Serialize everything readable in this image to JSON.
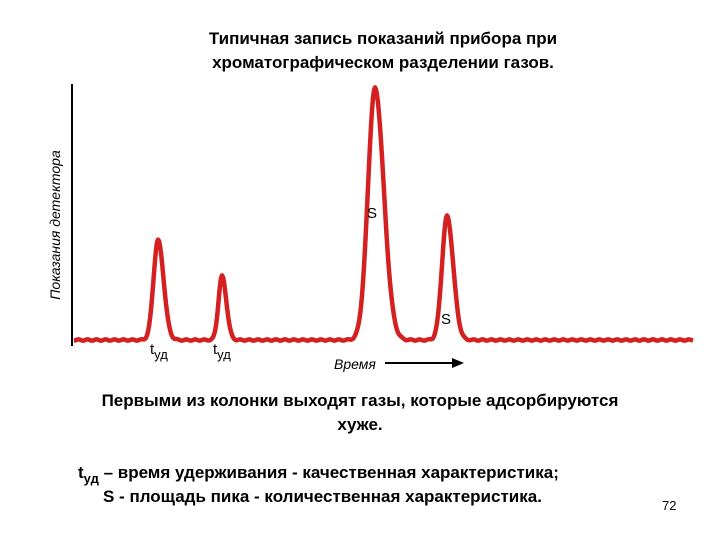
{
  "header": {
    "title_lines": [
      "Типичная запись показаний прибора при",
      "хроматографическом разделении газов."
    ]
  },
  "figure": {
    "y_label": "Показания детектора",
    "x_label": "Время",
    "peak_labels": [
      "S",
      "S"
    ],
    "retention_labels": [
      {
        "t": "t",
        "sub": "уд"
      },
      {
        "t": "t",
        "sub": "уд"
      }
    ]
  },
  "body": {
    "paragraph_lines": [
      "Первыми из колонки выходят газы, которые адсорбируются",
      "хуже."
    ],
    "definitions": [
      {
        "t": "t",
        "sub": "уд",
        "text": " – время удерживания - качественная характеристика;"
      },
      {
        "text": "S - площадь пика - количественная характеристика."
      }
    ]
  },
  "footer": {
    "page_number": "72"
  }
}
